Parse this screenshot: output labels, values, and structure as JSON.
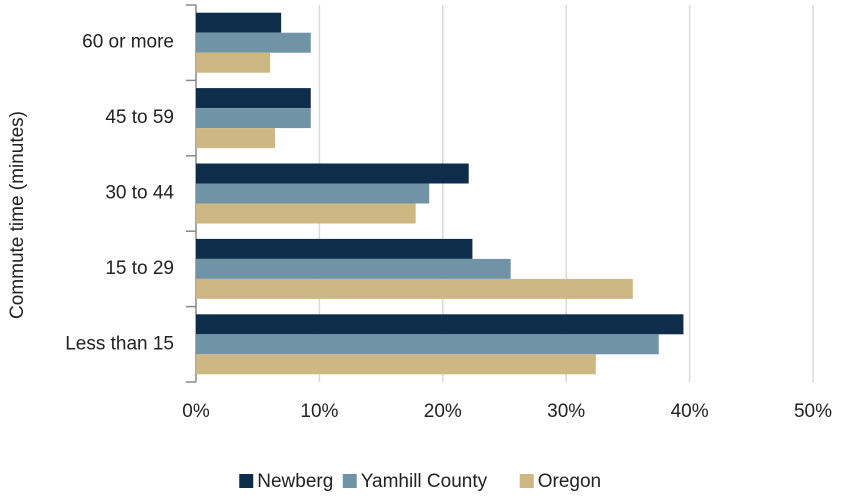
{
  "chart_data": {
    "type": "bar",
    "orientation": "horizontal",
    "y_label": "Commute time (minutes)",
    "categories": [
      "60 or more",
      "45 to 59",
      "30 to 44",
      "15 to 29",
      "Less than 15"
    ],
    "series": [
      {
        "name": "Newberg",
        "color": "#0e2d4a",
        "values": [
          6.9,
          9.3,
          22.1,
          22.4,
          39.5
        ]
      },
      {
        "name": "Yamhill County",
        "color": "#7094a6",
        "values": [
          9.3,
          9.3,
          18.9,
          25.5,
          37.5
        ]
      },
      {
        "name": "Oregon",
        "color": "#cdb782",
        "values": [
          6.0,
          6.4,
          17.8,
          35.4,
          32.4
        ]
      }
    ],
    "xlim": [
      0,
      50
    ],
    "xticks": [
      {
        "value": 0,
        "label": "0%"
      },
      {
        "value": 10,
        "label": "10%"
      },
      {
        "value": 20,
        "label": "20%"
      },
      {
        "value": 30,
        "label": "30%"
      },
      {
        "value": 40,
        "label": "40%"
      },
      {
        "value": 50,
        "label": "50%"
      }
    ],
    "grid": true,
    "legend": "bottom"
  }
}
